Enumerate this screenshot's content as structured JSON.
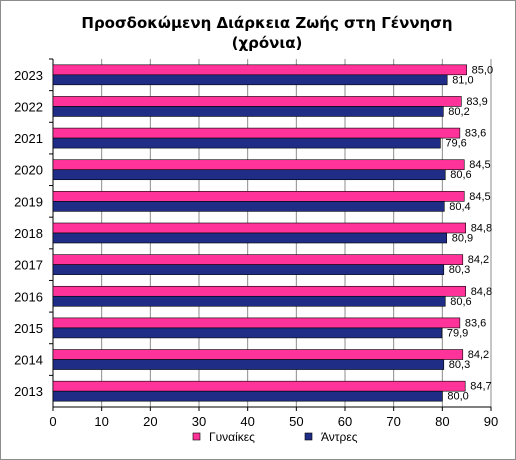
{
  "chart_data": {
    "type": "bar",
    "orientation": "horizontal",
    "title_line1": "Προσδοκώμενη Διάρκεια  Ζωής στη Γέννηση",
    "title_line2": "(χρόνια)",
    "categories": [
      "2023",
      "2022",
      "2021",
      "2020",
      "2019",
      "2018",
      "2017",
      "2016",
      "2015",
      "2014",
      "2013"
    ],
    "series": [
      {
        "name": "Γυναίκες",
        "color": "#ff3399",
        "values": [
          85.0,
          83.9,
          83.6,
          84.5,
          84.5,
          84.8,
          84.2,
          84.8,
          83.6,
          84.2,
          84.7
        ],
        "labels": [
          "85,0",
          "83,9",
          "83,6",
          "84,5",
          "84,5",
          "84,8",
          "84,2",
          "84,8",
          "83,6",
          "84,2",
          "84,7"
        ]
      },
      {
        "name": "Άντρες",
        "color": "#1f2d86",
        "values": [
          81.0,
          80.2,
          79.6,
          80.6,
          80.4,
          80.9,
          80.3,
          80.6,
          79.9,
          80.3,
          80.0
        ],
        "labels": [
          "81,0",
          "80,2",
          "79,6",
          "80,6",
          "80,4",
          "80,9",
          "80,3",
          "80,6",
          "79,9",
          "80,3",
          "80,0"
        ]
      }
    ],
    "xlim": [
      0,
      90
    ],
    "xticks": [
      0,
      10,
      20,
      30,
      40,
      50,
      60,
      70,
      80,
      90
    ],
    "grid": "vertical",
    "legend_position": "bottom"
  }
}
